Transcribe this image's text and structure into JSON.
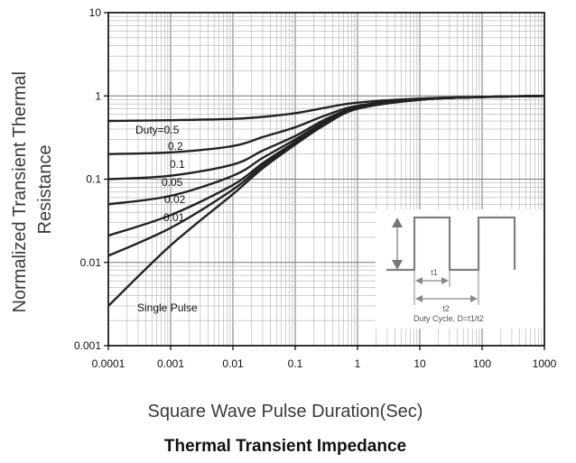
{
  "chart_data": {
    "type": "line",
    "title": "Thermal Transient Impedance",
    "xlabel": "Square Wave Pulse Duration(Sec)",
    "ylabel": "Normalized Transient Thermal Resistance",
    "ylabel_lines": [
      "Normalized Transient Thermal",
      "Resistance"
    ],
    "x_scale": "log",
    "y_scale": "log",
    "xlim": [
      0.0001,
      1000
    ],
    "ylim": [
      0.001,
      10
    ],
    "x_ticks": [
      "0.0001",
      "0.001",
      "0.01",
      "0.1",
      "1",
      "10",
      "100",
      "1000"
    ],
    "y_ticks": [
      "0.001",
      "0.01",
      "0.1",
      "1",
      "10"
    ],
    "grid": true,
    "curve_labels": [
      "Duty=0.5",
      "0.2",
      "0.1",
      "0.05",
      "0.02",
      "0.01",
      "Single Pulse"
    ],
    "series": [
      {
        "name": "Duty=0.5",
        "x": [
          0.0001,
          0.001,
          0.01,
          0.03,
          0.1,
          0.3,
          1,
          10,
          100,
          1000
        ],
        "y": [
          0.5,
          0.51,
          0.53,
          0.56,
          0.62,
          0.72,
          0.83,
          0.93,
          0.97,
          1.0
        ]
      },
      {
        "name": "0.2",
        "x": [
          0.0001,
          0.001,
          0.01,
          0.03,
          0.1,
          0.3,
          1,
          10,
          100,
          1000
        ],
        "y": [
          0.2,
          0.21,
          0.25,
          0.32,
          0.42,
          0.58,
          0.76,
          0.92,
          0.97,
          1.0
        ]
      },
      {
        "name": "0.1",
        "x": [
          0.0001,
          0.001,
          0.01,
          0.03,
          0.1,
          0.3,
          1,
          10,
          100,
          1000
        ],
        "y": [
          0.1,
          0.11,
          0.15,
          0.22,
          0.33,
          0.52,
          0.73,
          0.91,
          0.97,
          1.0
        ]
      },
      {
        "name": "0.05",
        "x": [
          0.0001,
          0.001,
          0.01,
          0.03,
          0.1,
          0.3,
          1,
          10,
          100,
          1000
        ],
        "y": [
          0.05,
          0.063,
          0.11,
          0.18,
          0.3,
          0.49,
          0.72,
          0.9,
          0.97,
          1.0
        ]
      },
      {
        "name": "0.02",
        "x": [
          0.0001,
          0.001,
          0.01,
          0.03,
          0.1,
          0.3,
          1,
          10,
          100,
          1000
        ],
        "y": [
          0.021,
          0.037,
          0.085,
          0.155,
          0.28,
          0.47,
          0.71,
          0.9,
          0.97,
          1.0
        ]
      },
      {
        "name": "0.01",
        "x": [
          0.0001,
          0.001,
          0.01,
          0.03,
          0.1,
          0.3,
          1,
          10,
          100,
          1000
        ],
        "y": [
          0.012,
          0.026,
          0.075,
          0.145,
          0.27,
          0.46,
          0.7,
          0.9,
          0.97,
          1.0
        ]
      },
      {
        "name": "Single Pulse",
        "x": [
          0.0001,
          0.001,
          0.01,
          0.03,
          0.1,
          0.3,
          1,
          10,
          100,
          1000
        ],
        "y": [
          0.003,
          0.016,
          0.066,
          0.135,
          0.26,
          0.45,
          0.7,
          0.9,
          0.97,
          1.0
        ]
      }
    ],
    "inset": {
      "labels": [
        "t1",
        "t2",
        "Duty Cycle, D=t1/t2"
      ]
    },
    "colors": {
      "curves": "#222222",
      "grid": "#b0b0b0",
      "axis": "#000000"
    }
  }
}
